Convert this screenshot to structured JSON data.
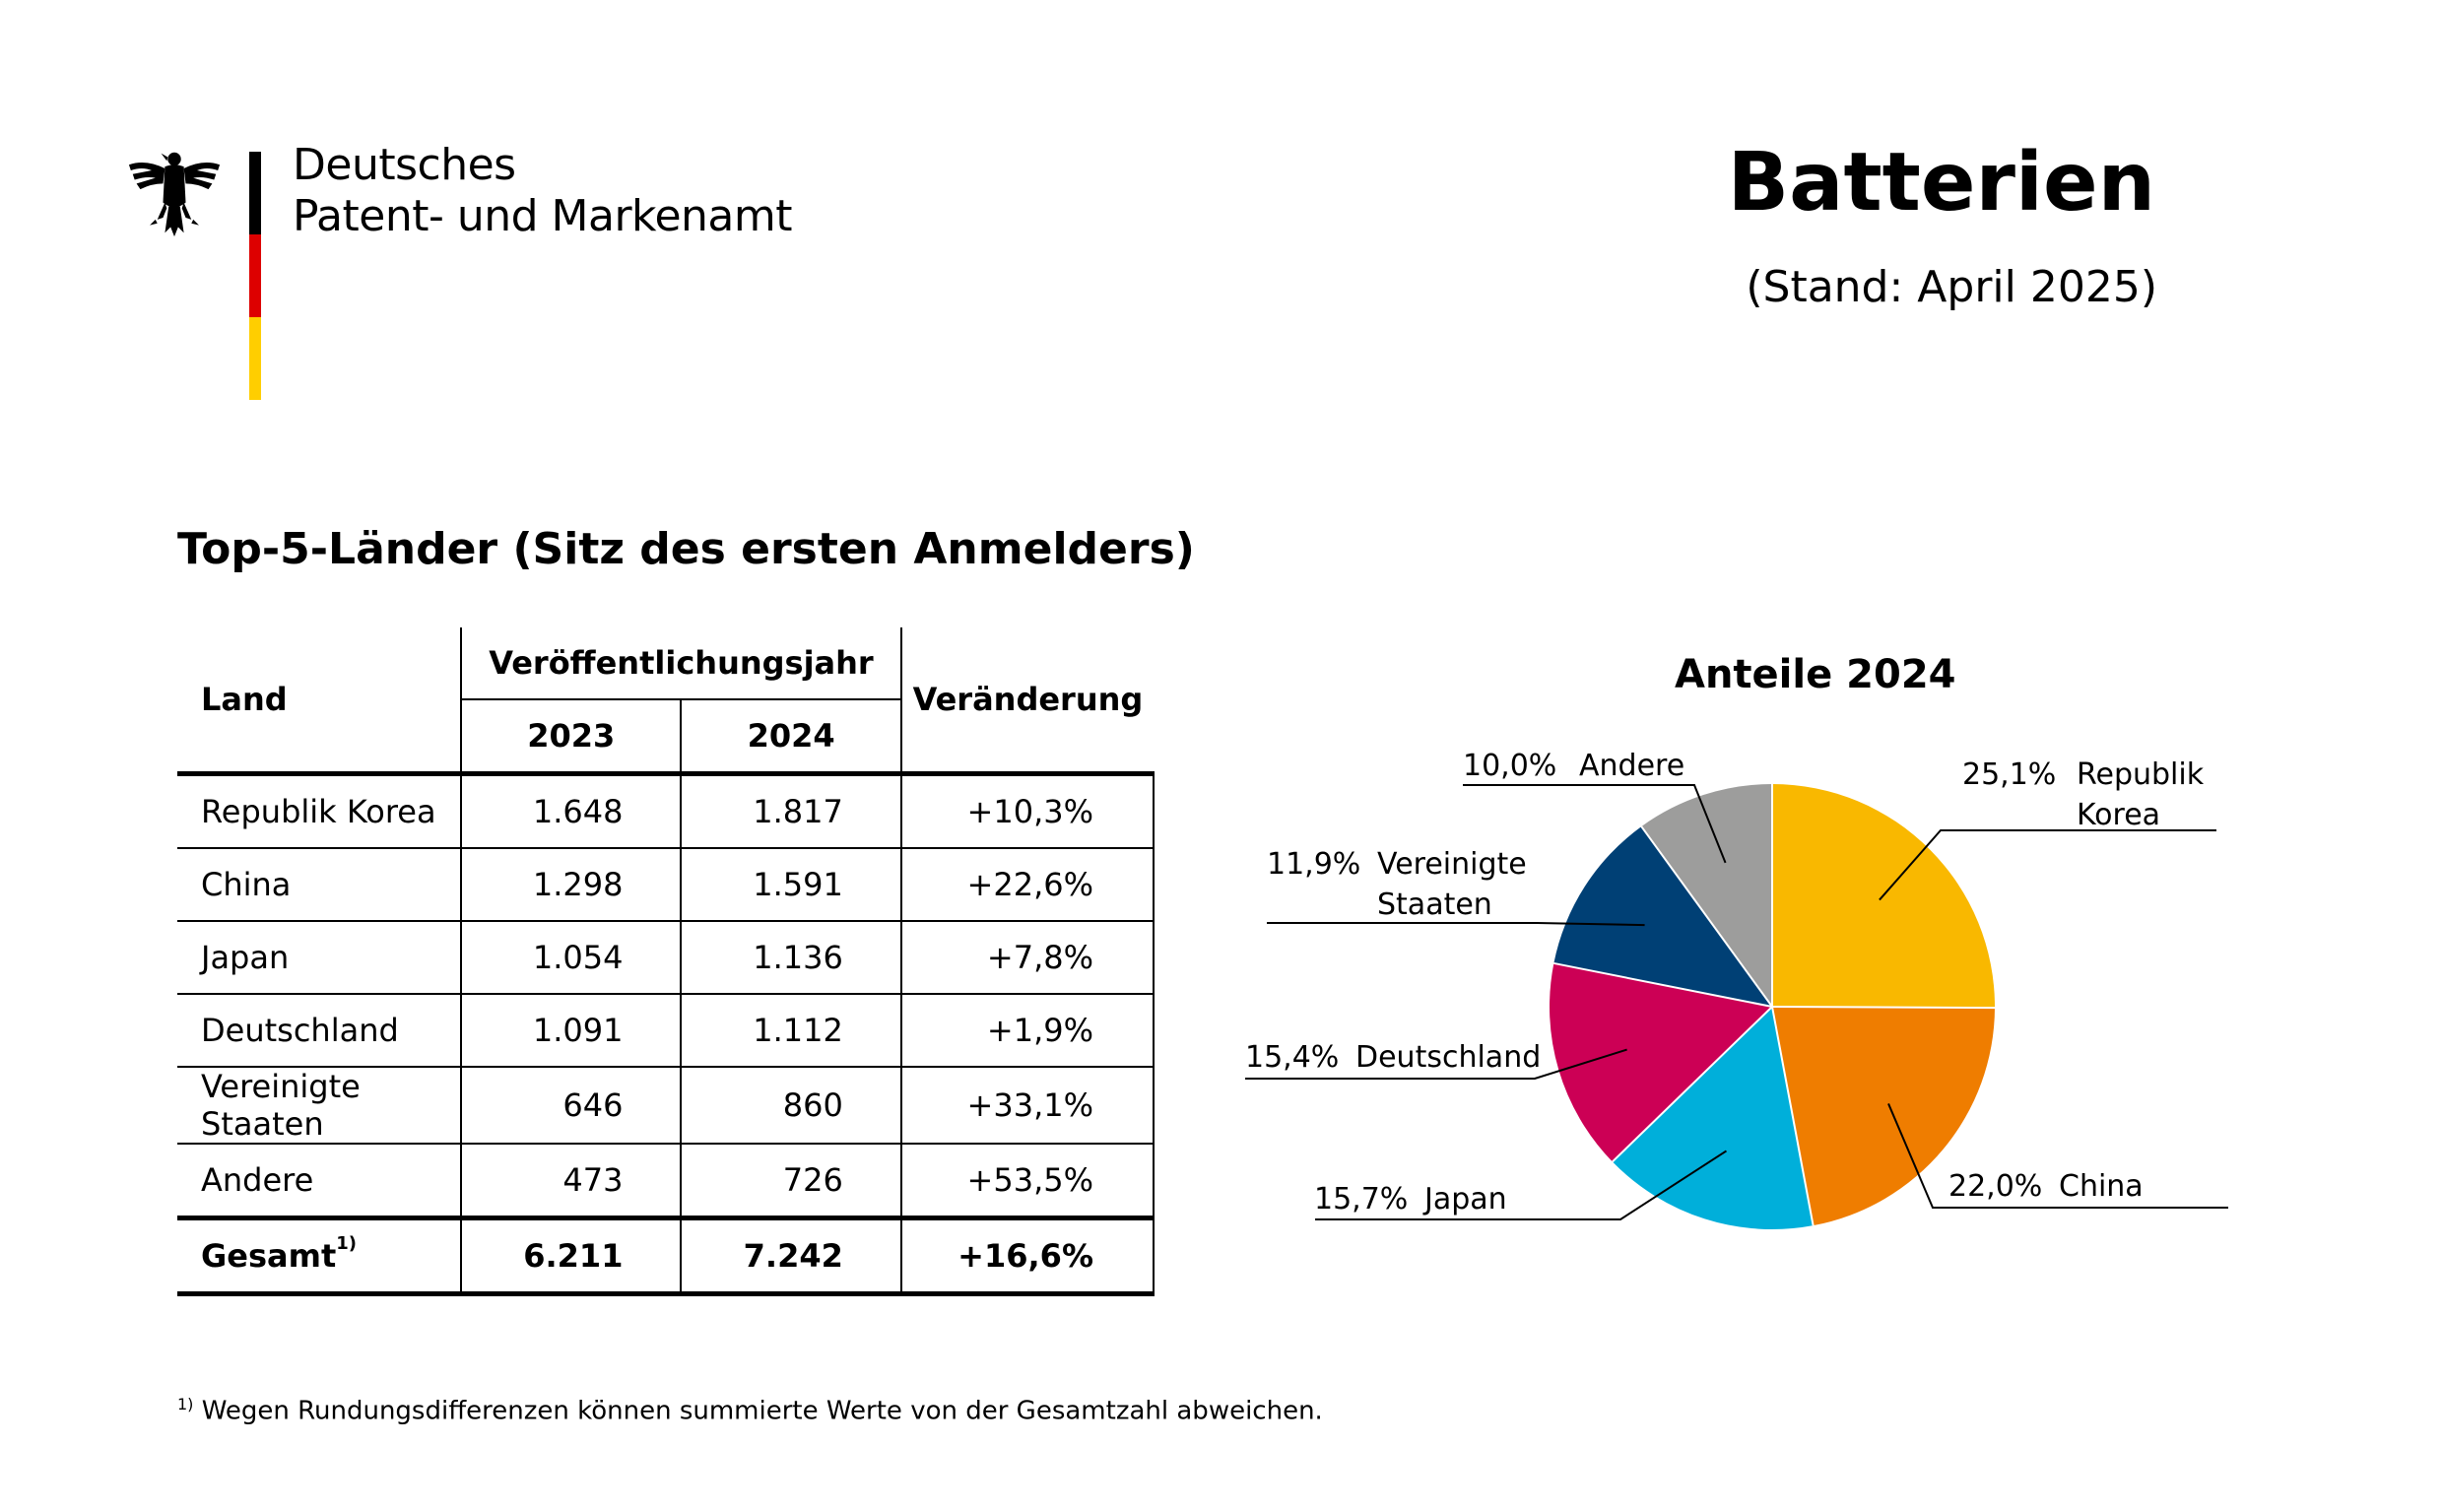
{
  "header": {
    "agency_line1": "Deutsches",
    "agency_line2": "Patent- und Markenamt",
    "title": "Batterien",
    "subtitle": "(Stand: April 2025)",
    "flag_colors": [
      "#000000",
      "#DD0000",
      "#FFCE00"
    ]
  },
  "table": {
    "heading": "Top-5-Länder (Sitz des ersten Anmelders)",
    "col_land": "Land",
    "col_group": "Veröffentlichungsjahr",
    "col_year1": "2023",
    "col_year2": "2024",
    "col_change": "Veränderung",
    "rows": [
      {
        "land": "Republik Korea",
        "y2023": "1.648",
        "y2024": "1.817",
        "change": "+10,3%"
      },
      {
        "land": "China",
        "y2023": "1.298",
        "y2024": "1.591",
        "change": "+22,6%"
      },
      {
        "land": "Japan",
        "y2023": "1.054",
        "y2024": "1.136",
        "change": "+7,8%"
      },
      {
        "land": "Deutschland",
        "y2023": "1.091",
        "y2024": "1.112",
        "change": "+1,9%"
      },
      {
        "land": "Vereinigte Staaten",
        "y2023": "646",
        "y2024": "860",
        "change": "+33,1%"
      },
      {
        "land": "Andere",
        "y2023": "473",
        "y2024": "726",
        "change": "+53,5%"
      }
    ],
    "total": {
      "land": "Gesamt",
      "marker": "1)",
      "y2023": "6.211",
      "y2024": "7.242",
      "change": "+16,6%"
    }
  },
  "footnote": {
    "marker": "1)",
    "text": "Wegen Rundungsdifferenzen können summierte Werte von der Gesamtzahl abweichen."
  },
  "chart_data": {
    "type": "pie",
    "title": "Anteile 2024",
    "slices": [
      {
        "label": "Republik Korea",
        "label_lines": [
          "Republik",
          "Korea"
        ],
        "value": 25.1,
        "value_text": "25,1%",
        "color": "#F9B800"
      },
      {
        "label": "China",
        "label_lines": [
          "China"
        ],
        "value": 22.0,
        "value_text": "22,0%",
        "color": "#EF7D00"
      },
      {
        "label": "Japan",
        "label_lines": [
          "Japan"
        ],
        "value": 15.7,
        "value_text": "15,7%",
        "color": "#00AFDA"
      },
      {
        "label": "Deutschland",
        "label_lines": [
          "Deutschland"
        ],
        "value": 15.4,
        "value_text": "15,4%",
        "color": "#CC0055"
      },
      {
        "label": "Vereinigte Staaten",
        "label_lines": [
          "Vereinigte",
          "Staaten"
        ],
        "value": 11.9,
        "value_text": "11,9%",
        "color": "#004075"
      },
      {
        "label": "Andere",
        "label_lines": [
          "Andere"
        ],
        "value": 10.0,
        "value_text": "10,0%",
        "color": "#9D9D9C"
      }
    ]
  }
}
